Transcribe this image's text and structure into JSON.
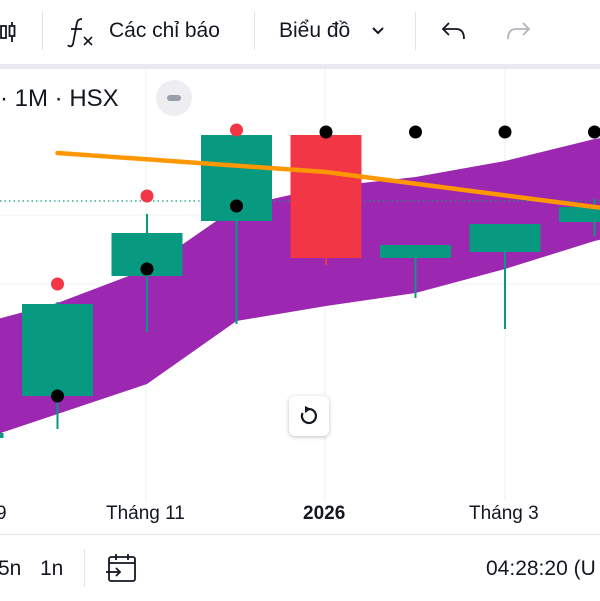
{
  "toolbar": {
    "indicators_label": "Các chỉ báo",
    "chart_type_label": "Biểu đồ",
    "icons": [
      "candles-icon",
      "function-icon",
      "chevron-down-icon",
      "undo-icon",
      "redo-icon"
    ]
  },
  "legend": {
    "symbol_text": "· 1M · HSX"
  },
  "x_axis": {
    "labels": [
      "9",
      "Tháng 11",
      "2026",
      "Tháng 3"
    ]
  },
  "footer": {
    "range_5n": "5n",
    "range_1n": "1n",
    "time": "04:28:20 (U"
  },
  "colors": {
    "up": "#089981",
    "down": "#f23645",
    "band": "#9c27b0",
    "ma": "#ff9800",
    "marker_red": "#f23645",
    "marker_black": "#000000"
  },
  "chart_data": {
    "type": "candlestick",
    "title": "",
    "xlabel": "",
    "ylabel": "",
    "y_axis_visible": false,
    "grid": true,
    "candles": [
      {
        "slot": 0,
        "open": 31,
        "close": 36,
        "high": 40,
        "low": 10,
        "direction": "up"
      },
      {
        "slot": 1,
        "open": 73,
        "close": 165,
        "high": 167,
        "low": 40,
        "direction": "up"
      },
      {
        "slot": 2,
        "open": 193,
        "close": 236,
        "high": 255,
        "low": 137,
        "direction": "up"
      },
      {
        "slot": 3,
        "open": 248,
        "close": 334,
        "high": 336,
        "low": 145,
        "direction": "up"
      },
      {
        "slot": 4,
        "open": 334,
        "close": 211,
        "high": 334,
        "low": 204,
        "direction": "down"
      },
      {
        "slot": 5,
        "open": 211,
        "close": 224,
        "high": 224,
        "low": 171,
        "direction": "up"
      },
      {
        "slot": 6,
        "open": 217,
        "close": 245,
        "high": 245,
        "low": 140,
        "direction": "up"
      },
      {
        "slot": 7,
        "open": 247,
        "close": 262,
        "high": 270,
        "low": 233,
        "direction": "up"
      }
    ],
    "band": {
      "upper": [
        [
          -0.5,
          130
        ],
        [
          0,
          142
        ],
        [
          1,
          166
        ],
        [
          2,
          200
        ],
        [
          3,
          262
        ],
        [
          4,
          282
        ],
        [
          5,
          292
        ],
        [
          6,
          308
        ],
        [
          7,
          330
        ],
        [
          7.4,
          335
        ]
      ],
      "lower": [
        [
          -0.5,
          15
        ],
        [
          0,
          25
        ],
        [
          1,
          55
        ],
        [
          2,
          85
        ],
        [
          3,
          148
        ],
        [
          4,
          163
        ],
        [
          5,
          176
        ],
        [
          6,
          200
        ],
        [
          7,
          228
        ],
        [
          7.4,
          236
        ]
      ]
    },
    "moving_average": [
      [
        1,
        316
      ],
      [
        4,
        297
      ],
      [
        7,
        262
      ],
      [
        7.4,
        258
      ]
    ],
    "markers": [
      {
        "slot": 1,
        "value": 185,
        "color": "red"
      },
      {
        "slot": 1,
        "value": 73,
        "color": "black"
      },
      {
        "slot": 2,
        "value": 273,
        "color": "red"
      },
      {
        "slot": 2,
        "value": 200,
        "color": "black"
      },
      {
        "slot": 3,
        "value": 339,
        "color": "red"
      },
      {
        "slot": 3,
        "value": 263,
        "color": "black"
      },
      {
        "slot": 4,
        "value": 337,
        "color": "black"
      },
      {
        "slot": 5,
        "value": 337,
        "color": "black"
      },
      {
        "slot": 6,
        "value": 337,
        "color": "black"
      },
      {
        "slot": 7,
        "value": 337,
        "color": "black"
      }
    ],
    "reference_line_value": 268
  }
}
